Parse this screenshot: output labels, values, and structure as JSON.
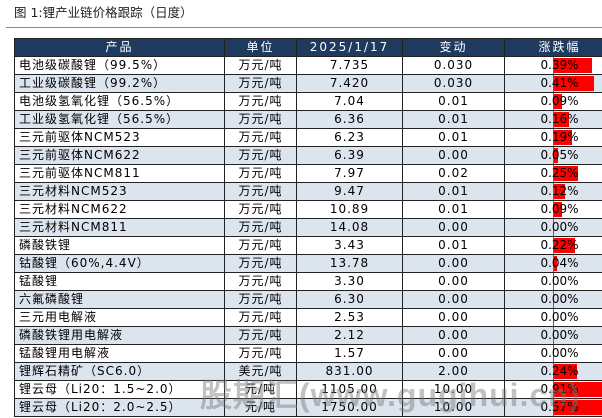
{
  "title": "图 1:锂产业链价格跟踪（日度）",
  "headers": [
    "产品",
    "单位",
    "2025/1/17",
    "变动",
    "涨跌幅"
  ],
  "bar_color": "#ff0000",
  "header_color": "#1f3a5f",
  "rows": [
    {
      "product": "电池级碳酸锂（99.5%）",
      "unit": "万元/吨",
      "price": "7.735",
      "change": "0.030",
      "pct": "0.39%",
      "pct_value": 0.39
    },
    {
      "product": "工业级碳酸锂（99.2%）",
      "unit": "万元/吨",
      "price": "7.420",
      "change": "0.030",
      "pct": "0.41%",
      "pct_value": 0.41
    },
    {
      "product": "电池级氢氧化锂（56.5%）",
      "unit": "万元/吨",
      "price": "7.04",
      "change": "0.01",
      "pct": "0.09%",
      "pct_value": 0.09
    },
    {
      "product": "工业级氢氧化锂（56.5%）",
      "unit": "万元/吨",
      "price": "6.36",
      "change": "0.01",
      "pct": "0.16%",
      "pct_value": 0.16
    },
    {
      "product": "三元前驱体NCM523",
      "unit": "万元/吨",
      "price": "6.23",
      "change": "0.01",
      "pct": "0.19%",
      "pct_value": 0.19
    },
    {
      "product": "三元前驱体NCM622",
      "unit": "万元/吨",
      "price": "6.39",
      "change": "0.00",
      "pct": "0.05%",
      "pct_value": 0.05
    },
    {
      "product": "三元前驱体NCM811",
      "unit": "万元/吨",
      "price": "7.97",
      "change": "0.02",
      "pct": "0.25%",
      "pct_value": 0.25
    },
    {
      "product": "三元材料NCM523",
      "unit": "万元/吨",
      "price": "9.47",
      "change": "0.01",
      "pct": "0.12%",
      "pct_value": 0.12
    },
    {
      "product": "三元材料NCM622",
      "unit": "万元/吨",
      "price": "10.89",
      "change": "0.01",
      "pct": "0.09%",
      "pct_value": 0.09
    },
    {
      "product": "三元材料NCM811",
      "unit": "万元/吨",
      "price": "14.08",
      "change": "0.00",
      "pct": "0.00%",
      "pct_value": 0
    },
    {
      "product": "磷酸铁锂",
      "unit": "万元/吨",
      "price": "3.43",
      "change": "0.01",
      "pct": "0.22%",
      "pct_value": 0.22
    },
    {
      "product": "钴酸锂（60%,4.4V）",
      "unit": "万元/吨",
      "price": "13.78",
      "change": "0.00",
      "pct": "0.04%",
      "pct_value": 0.04
    },
    {
      "product": "锰酸锂",
      "unit": "万元/吨",
      "price": "3.30",
      "change": "0.00",
      "pct": "0.00%",
      "pct_value": 0
    },
    {
      "product": "六氟磷酸锂",
      "unit": "万元/吨",
      "price": "6.30",
      "change": "0.00",
      "pct": "0.00%",
      "pct_value": 0
    },
    {
      "product": "三元用电解液",
      "unit": "万元/吨",
      "price": "2.53",
      "change": "0.00",
      "pct": "0.00%",
      "pct_value": 0
    },
    {
      "product": "磷酸铁锂用电解液",
      "unit": "万元/吨",
      "price": "2.12",
      "change": "0.00",
      "pct": "0.00%",
      "pct_value": 0
    },
    {
      "product": "锰酸锂用电解液",
      "unit": "万元/吨",
      "price": "1.57",
      "change": "0.00",
      "pct": "0.00%",
      "pct_value": 0
    },
    {
      "product": "锂辉石精矿（SC6.0）",
      "unit": "美元/吨",
      "price": "831.00",
      "change": "2.00",
      "pct": "0.24%",
      "pct_value": 0.24
    },
    {
      "product": "锂云母（Li20：1.5~2.0）",
      "unit": "元/吨",
      "price": "1105.00",
      "change": "10.00",
      "pct": "0.91%",
      "pct_value": 0.91
    },
    {
      "product": "锂云母（Li20：2.0~2.5）",
      "unit": "元/吨",
      "price": "1750.00",
      "change": "10.00",
      "pct": "0.57%",
      "pct_value": 0.57
    }
  ],
  "watermark": "股期汇(www.gugihui.cn)"
}
